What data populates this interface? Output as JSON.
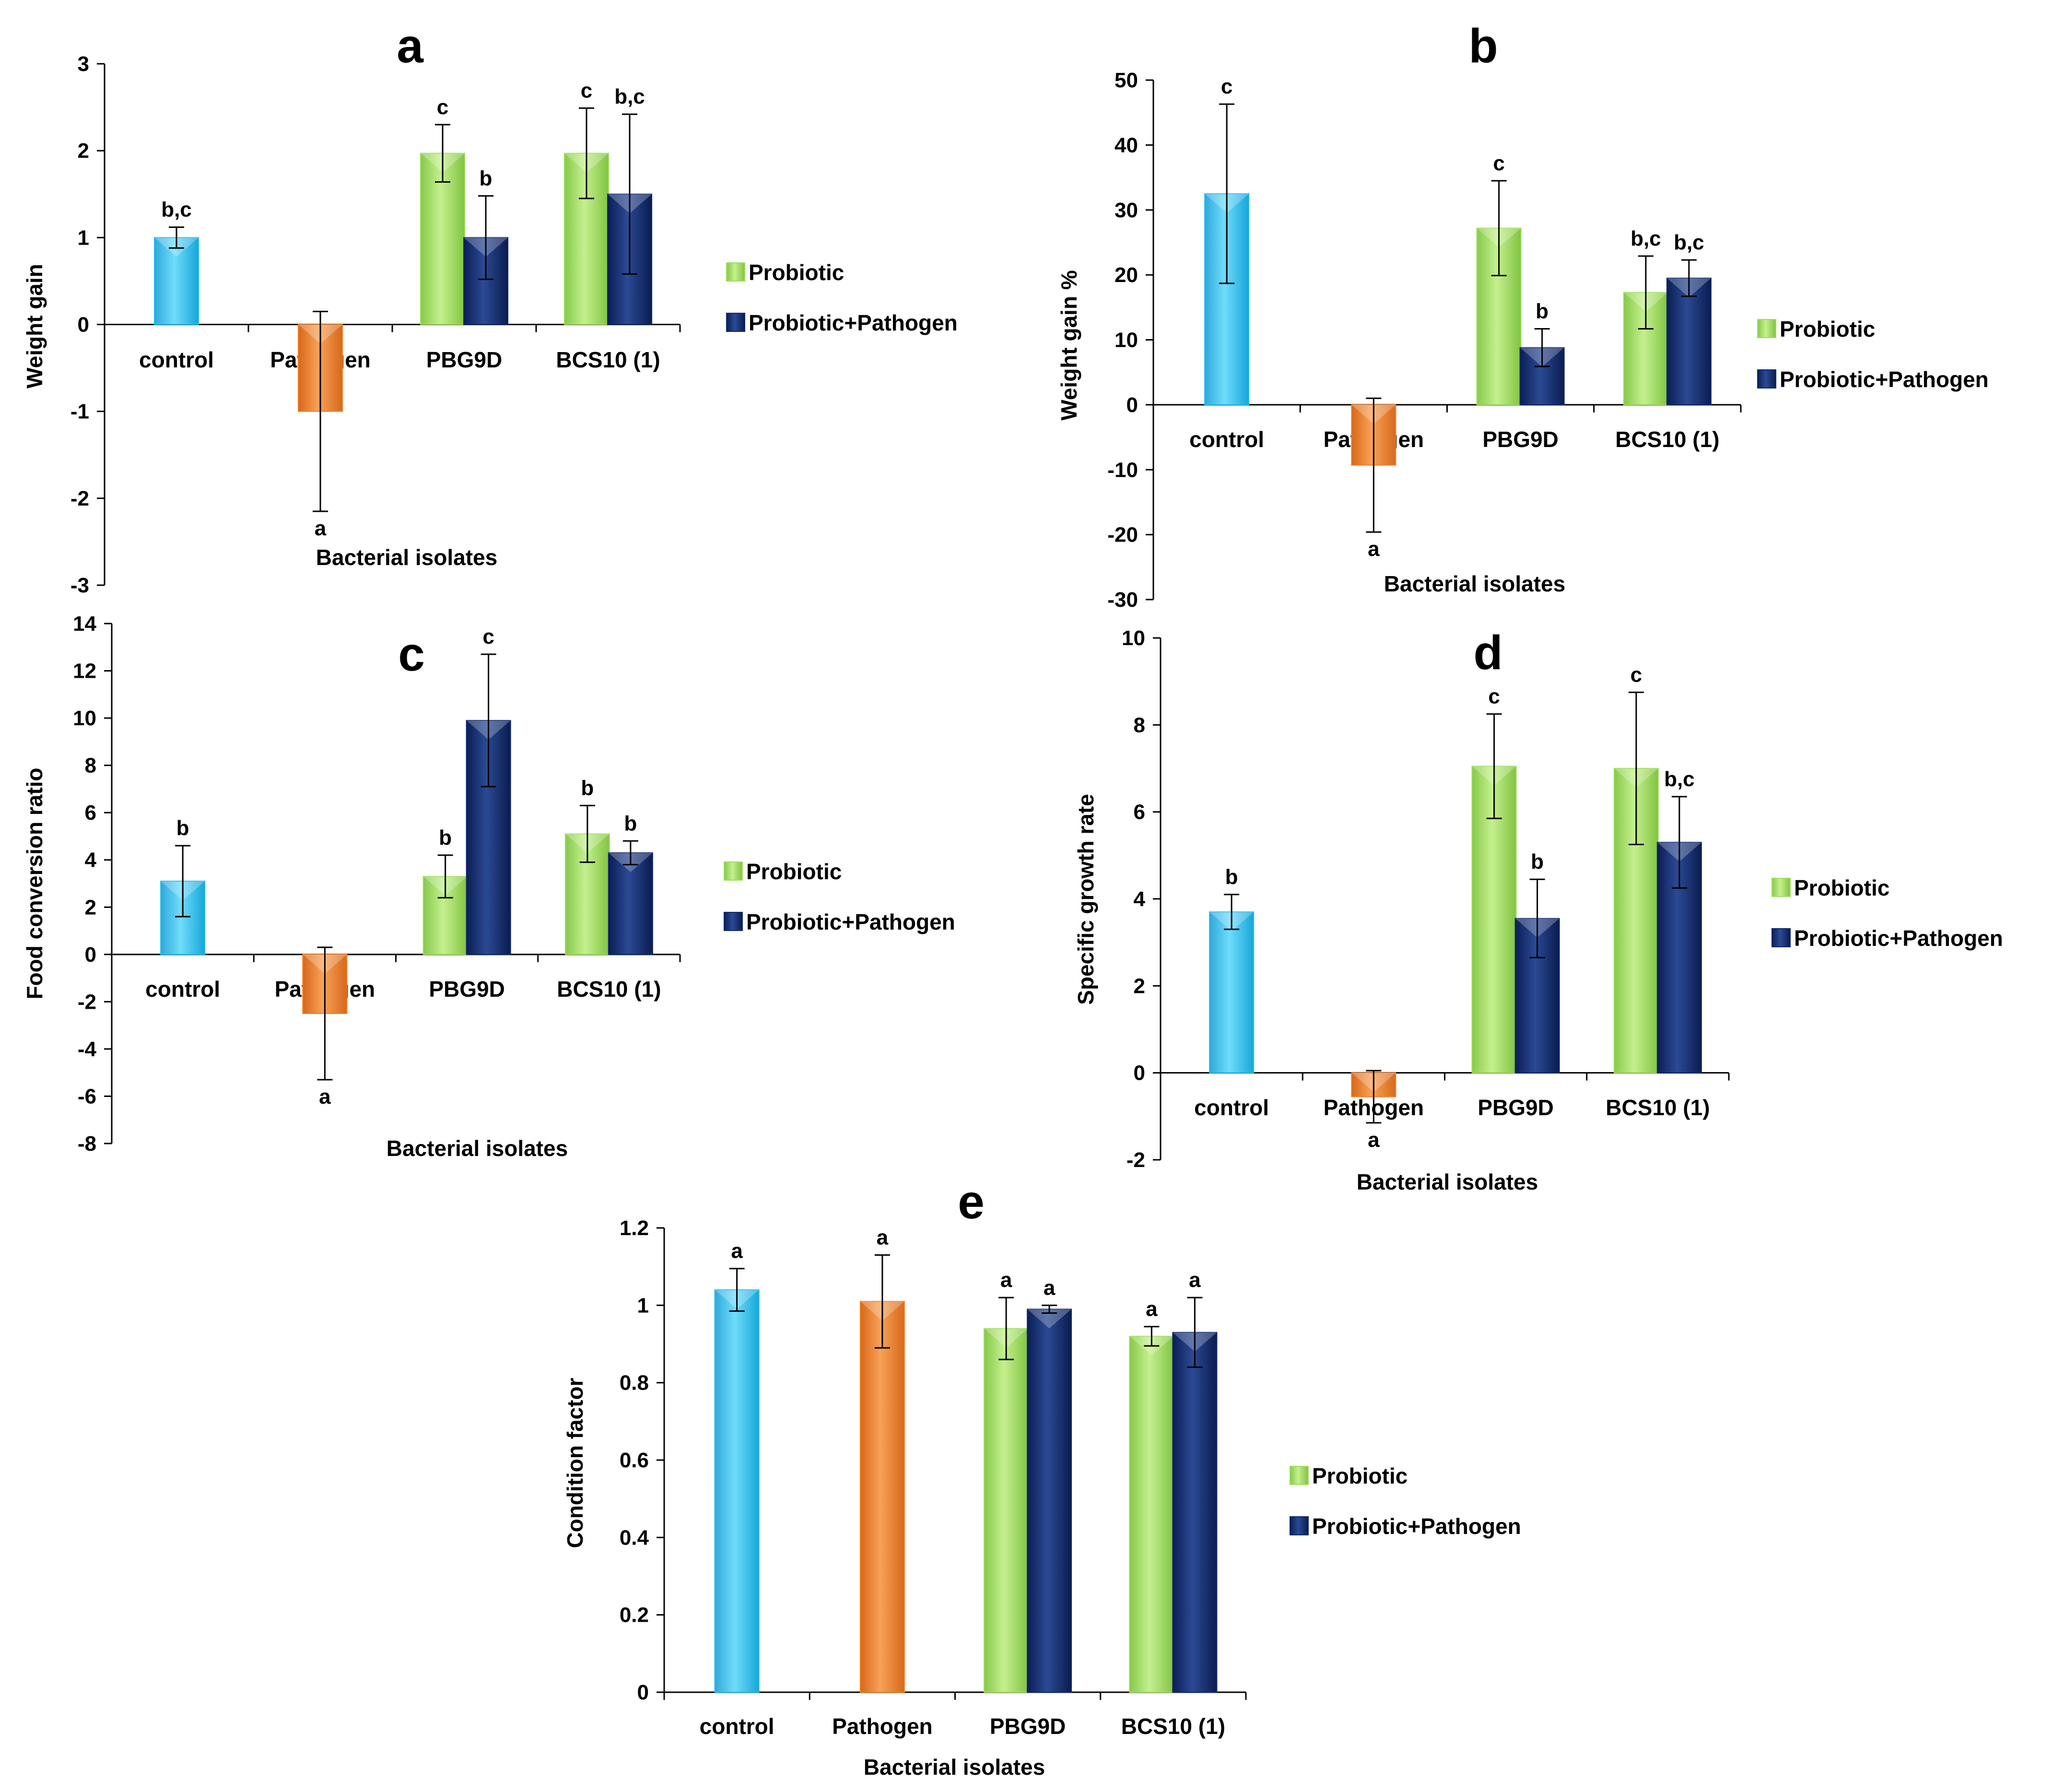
{
  "colors": {
    "control": "#1FBDF0",
    "pathogen": "#F28120",
    "probiotic": "#9FDE5A",
    "probiotic_pathogen": "#102A6E"
  },
  "legend": {
    "probiotic": "Probiotic",
    "probiotic_pathogen": "Probiotic+Pathogen"
  },
  "chart_data": [
    {
      "id": "a",
      "panel_letter": "a",
      "type": "bar",
      "ylabel": "Weight gain",
      "xlabel": "Bacterial isolates",
      "ylim": [
        -3,
        3
      ],
      "yticks": [
        -3,
        -2,
        -1,
        0,
        1,
        2,
        3
      ],
      "categories": [
        "control",
        "Pathogen",
        "PBG9D",
        "BCS10 (1)"
      ],
      "bars": [
        {
          "cat": 0,
          "series": "control",
          "value": 1.0,
          "err": 0.12,
          "label": "b,c"
        },
        {
          "cat": 1,
          "series": "pathogen",
          "value": -1.0,
          "err": 1.15,
          "label": "a"
        },
        {
          "cat": 2,
          "series": "probiotic",
          "value": 1.97,
          "err": 0.33,
          "label": "c"
        },
        {
          "cat": 2,
          "series": "probiotic_pathogen",
          "value": 1.0,
          "err": 0.48,
          "label": "b"
        },
        {
          "cat": 3,
          "series": "probiotic",
          "value": 1.97,
          "err": 0.52,
          "label": "c"
        },
        {
          "cat": 3,
          "series": "probiotic_pathogen",
          "value": 1.5,
          "err": 0.92,
          "label": "b,c"
        }
      ]
    },
    {
      "id": "b",
      "panel_letter": "b",
      "type": "bar",
      "ylabel": "Weight gain %",
      "xlabel": "Bacterial isolates",
      "ylim": [
        -30,
        50
      ],
      "yticks": [
        -30,
        -20,
        -10,
        0,
        10,
        20,
        30,
        40,
        50
      ],
      "categories": [
        "control",
        "Pathogen",
        "PBG9D",
        "BCS10 (1)"
      ],
      "bars": [
        {
          "cat": 0,
          "series": "control",
          "value": 32.5,
          "err": 13.8,
          "label": "c"
        },
        {
          "cat": 1,
          "series": "pathogen",
          "value": -9.3,
          "err": 10.3,
          "label": "a"
        },
        {
          "cat": 2,
          "series": "probiotic",
          "value": 27.2,
          "err": 7.3,
          "label": "c"
        },
        {
          "cat": 2,
          "series": "probiotic_pathogen",
          "value": 8.8,
          "err": 2.9,
          "label": "b"
        },
        {
          "cat": 3,
          "series": "probiotic",
          "value": 17.3,
          "err": 5.6,
          "label": "b,c"
        },
        {
          "cat": 3,
          "series": "probiotic_pathogen",
          "value": 19.5,
          "err": 2.8,
          "label": "b,c"
        }
      ]
    },
    {
      "id": "c",
      "panel_letter": "c",
      "type": "bar",
      "ylabel": "Food conversion ratio",
      "xlabel": "Bacterial isolates",
      "ylim": [
        -8,
        14
      ],
      "yticks": [
        -8,
        -6,
        -4,
        -2,
        0,
        2,
        4,
        6,
        8,
        10,
        12,
        14
      ],
      "categories": [
        "control",
        "Pathogen",
        "PBG9D",
        "BCS10 (1)"
      ],
      "bars": [
        {
          "cat": 0,
          "series": "control",
          "value": 3.1,
          "err": 1.5,
          "label": "b"
        },
        {
          "cat": 1,
          "series": "pathogen",
          "value": -2.5,
          "err": 2.8,
          "label": "a"
        },
        {
          "cat": 2,
          "series": "probiotic",
          "value": 3.3,
          "err": 0.9,
          "label": "b"
        },
        {
          "cat": 2,
          "series": "probiotic_pathogen",
          "value": 9.9,
          "err": 2.8,
          "label": "c"
        },
        {
          "cat": 3,
          "series": "probiotic",
          "value": 5.1,
          "err": 1.2,
          "label": "b"
        },
        {
          "cat": 3,
          "series": "probiotic_pathogen",
          "value": 4.3,
          "err": 0.5,
          "label": "b"
        }
      ]
    },
    {
      "id": "d",
      "panel_letter": "d",
      "type": "bar",
      "ylabel": "Specific growth rate",
      "xlabel": "Bacterial isolates",
      "ylim": [
        -2,
        10
      ],
      "yticks": [
        -2,
        0,
        2,
        4,
        6,
        8,
        10
      ],
      "categories": [
        "control",
        "Pathogen",
        "PBG9D",
        "BCS10 (1)"
      ],
      "bars": [
        {
          "cat": 0,
          "series": "control",
          "value": 3.7,
          "err": 0.4,
          "label": "b"
        },
        {
          "cat": 1,
          "series": "pathogen",
          "value": -0.55,
          "err": 0.6,
          "label": "a"
        },
        {
          "cat": 2,
          "series": "probiotic",
          "value": 7.05,
          "err": 1.2,
          "label": "c"
        },
        {
          "cat": 2,
          "series": "probiotic_pathogen",
          "value": 3.55,
          "err": 0.9,
          "label": "b"
        },
        {
          "cat": 3,
          "series": "probiotic",
          "value": 7.0,
          "err": 1.75,
          "label": "c"
        },
        {
          "cat": 3,
          "series": "probiotic_pathogen",
          "value": 5.3,
          "err": 1.05,
          "label": "b,c"
        }
      ]
    },
    {
      "id": "e",
      "panel_letter": "e",
      "type": "bar",
      "ylabel": "Condition factor",
      "xlabel": "Bacterial isolates",
      "ylim": [
        0,
        1.2
      ],
      "yticks": [
        "0",
        "0.2",
        "0.4",
        "0.6",
        "0.8",
        "1",
        "1.2"
      ],
      "categories": [
        "control",
        "Pathogen",
        "PBG9D",
        "BCS10 (1)"
      ],
      "bars": [
        {
          "cat": 0,
          "series": "control",
          "value": 1.04,
          "err": 0.055,
          "label": "a"
        },
        {
          "cat": 1,
          "series": "pathogen",
          "value": 1.01,
          "err": 0.12,
          "label": "a"
        },
        {
          "cat": 2,
          "series": "probiotic",
          "value": 0.94,
          "err": 0.08,
          "label": "a"
        },
        {
          "cat": 2,
          "series": "probiotic_pathogen",
          "value": 0.99,
          "err": 0.01,
          "label": "a"
        },
        {
          "cat": 3,
          "series": "probiotic",
          "value": 0.92,
          "err": 0.025,
          "label": "a"
        },
        {
          "cat": 3,
          "series": "probiotic_pathogen",
          "value": 0.93,
          "err": 0.09,
          "label": "a"
        }
      ]
    }
  ]
}
